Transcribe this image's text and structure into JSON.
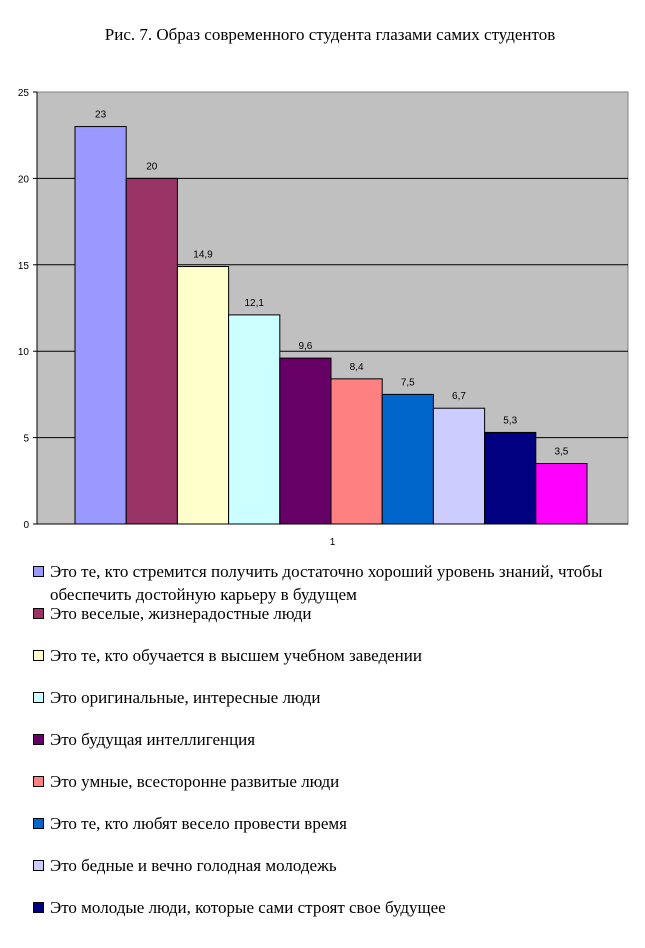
{
  "chart_data": {
    "type": "bar",
    "title": "Рис. 7. Образ современного студента глазами самих студентов",
    "categories": [
      "1"
    ],
    "ylim": [
      0,
      25
    ],
    "yticks": [
      0,
      5,
      10,
      15,
      20,
      25
    ],
    "grid": true,
    "legend_placement": "bottom",
    "series": [
      {
        "name": "Это те, кто стремится получить достаточно хороший уровень знаний, чтобы обеспечить достойную карьеру в будущем",
        "values": [
          23
        ],
        "label": "23",
        "color": "#9999FF"
      },
      {
        "name": "Это веселые, жизнерадостные люди",
        "values": [
          20
        ],
        "label": "20",
        "color": "#993366"
      },
      {
        "name": "Это те, кто обучается в высшем учебном заведении",
        "values": [
          14.9
        ],
        "label": "14,9",
        "color": "#FFFFCC"
      },
      {
        "name": "Это оригинальные, интересные люди",
        "values": [
          12.1
        ],
        "label": "12,1",
        "color": "#CCFFFF"
      },
      {
        "name": "Это будущая интеллигенция",
        "values": [
          9.6
        ],
        "label": "9,6",
        "color": "#660066"
      },
      {
        "name": "Это умные, всесторонне развитые люди",
        "values": [
          8.4
        ],
        "label": "8,4",
        "color": "#FF8080"
      },
      {
        "name": "Это те, кто любят весело провести время",
        "values": [
          7.5
        ],
        "label": "7,5",
        "color": "#0066CC"
      },
      {
        "name": "Это бедные и вечно голодная молодежь",
        "values": [
          6.7
        ],
        "label": "6,7",
        "color": "#CCCCFF"
      },
      {
        "name": "Это молодые люди, которые сами строят свое будущее",
        "values": [
          5.3
        ],
        "label": "5,3",
        "color": "#000080"
      },
      {
        "name": "",
        "values": [
          3.5
        ],
        "label": "3,5",
        "color": "#FF00FF"
      }
    ],
    "plot_background": "#C0C0C0"
  }
}
